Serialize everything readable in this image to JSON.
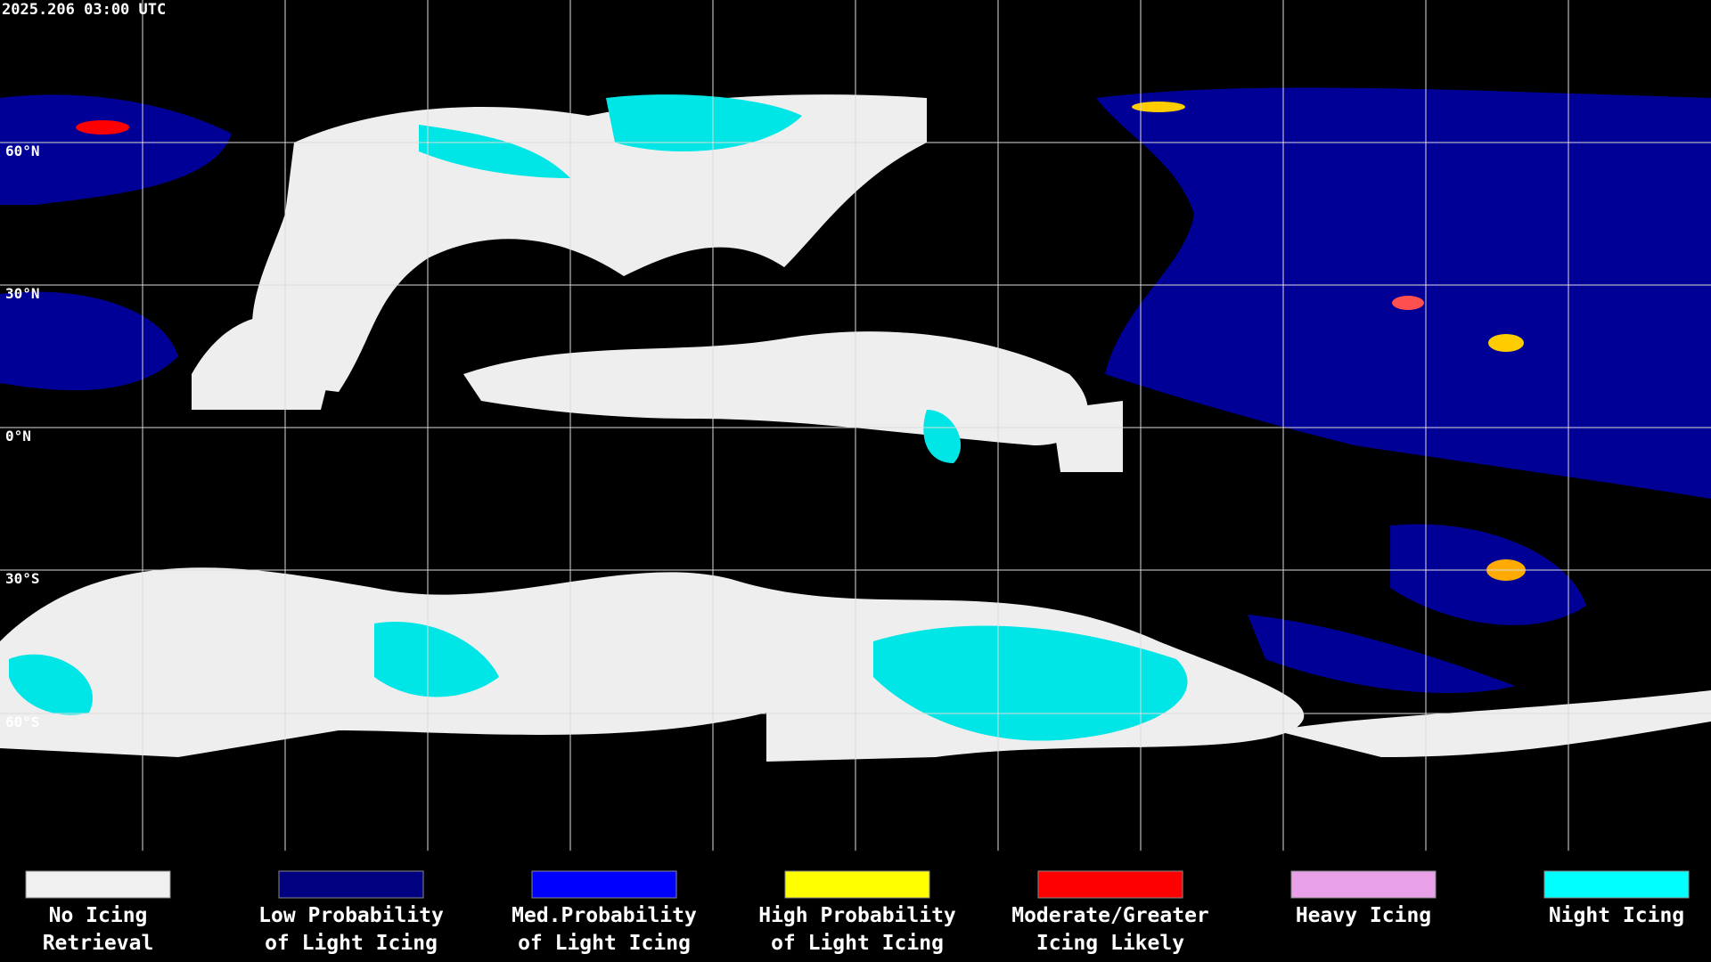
{
  "header": {
    "title": "2025.206 03:00 UTC"
  },
  "latitude_labels": [
    "60°N",
    "30°N",
    "0°N",
    "30°S",
    "60°S"
  ],
  "legend": [
    {
      "color": "#f0f0f0",
      "lines": [
        "No Icing",
        "Retrieval"
      ]
    },
    {
      "color": "#000080",
      "lines": [
        "Low Probability",
        "of Light Icing"
      ]
    },
    {
      "color": "#0000ff",
      "lines": [
        "Med.Probability",
        "of Light Icing"
      ]
    },
    {
      "color": "#ffff00",
      "lines": [
        "High Probability",
        "of Light Icing"
      ]
    },
    {
      "color": "#ff0000",
      "lines": [
        "Moderate/Greater",
        "Icing Likely"
      ]
    },
    {
      "color": "#e8a0e8",
      "lines": [
        "Heavy Icing"
      ]
    },
    {
      "color": "#00ffff",
      "lines": [
        "Night Icing"
      ]
    }
  ]
}
